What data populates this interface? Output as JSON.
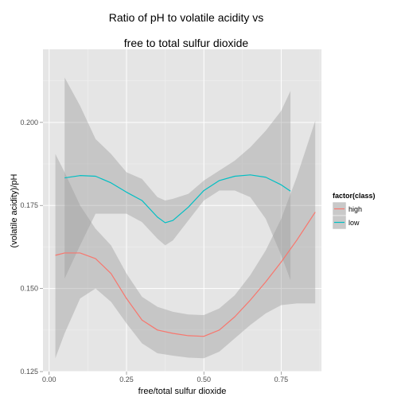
{
  "chart_data": {
    "type": "line",
    "title_lines": [
      "Ratio of pH to volatile acidity vs",
      "free to total sulfur dioxide"
    ],
    "xlabel": "free/total sulfur dioxide",
    "ylabel": "(volatile acidity)/pH",
    "xlim": [
      -0.02,
      0.88
    ],
    "ylim": [
      0.125,
      0.222
    ],
    "xticks": [
      0,
      0.25,
      0.5,
      0.75
    ],
    "xtick_labels": [
      "0.00",
      "0.25",
      "0.50",
      "0.75"
    ],
    "yticks": [
      0.125,
      0.15,
      0.175,
      0.2
    ],
    "ytick_labels": [
      "0.125",
      "0.150",
      "0.175",
      "0.200"
    ],
    "grid": true,
    "legend": {
      "title": "factor(class)",
      "position": "right"
    },
    "series": [
      {
        "name": "high",
        "color": "#F8766D",
        "x": [
          0.02,
          0.05,
          0.1,
          0.15,
          0.2,
          0.25,
          0.3,
          0.35,
          0.4,
          0.45,
          0.5,
          0.55,
          0.6,
          0.65,
          0.7,
          0.75,
          0.8,
          0.86
        ],
        "y": [
          0.16,
          0.1607,
          0.1607,
          0.159,
          0.1545,
          0.147,
          0.1405,
          0.1375,
          0.1365,
          0.1358,
          0.1356,
          0.1375,
          0.1415,
          0.1465,
          0.152,
          0.158,
          0.1645,
          0.173
        ],
        "lower": [
          0.129,
          0.1365,
          0.147,
          0.15,
          0.146,
          0.1395,
          0.1335,
          0.1305,
          0.1298,
          0.1292,
          0.129,
          0.131,
          0.135,
          0.139,
          0.1425,
          0.145,
          0.1455,
          0.1455
        ],
        "upper": [
          0.1905,
          0.185,
          0.175,
          0.168,
          0.163,
          0.1545,
          0.1475,
          0.1445,
          0.143,
          0.1422,
          0.142,
          0.144,
          0.148,
          0.154,
          0.1615,
          0.171,
          0.1835,
          0.2005
        ]
      },
      {
        "name": "low",
        "color": "#00BFC4",
        "x": [
          0.05,
          0.1,
          0.15,
          0.2,
          0.25,
          0.3,
          0.35,
          0.375,
          0.4,
          0.45,
          0.5,
          0.55,
          0.6,
          0.65,
          0.7,
          0.75,
          0.78
        ],
        "y": [
          0.1833,
          0.184,
          0.1838,
          0.1818,
          0.179,
          0.1765,
          0.1715,
          0.1698,
          0.1705,
          0.1745,
          0.1795,
          0.1825,
          0.1838,
          0.1842,
          0.1835,
          0.1812,
          0.1793
        ],
        "lower": [
          0.153,
          0.163,
          0.1725,
          0.1725,
          0.1725,
          0.17,
          0.165,
          0.163,
          0.1645,
          0.1705,
          0.1765,
          0.1795,
          0.1795,
          0.1775,
          0.171,
          0.16,
          0.1525
        ],
        "upper": [
          0.2135,
          0.205,
          0.195,
          0.1905,
          0.185,
          0.183,
          0.1775,
          0.1765,
          0.177,
          0.1785,
          0.1825,
          0.1855,
          0.1885,
          0.1925,
          0.1975,
          0.2035,
          0.2095
        ]
      }
    ]
  }
}
